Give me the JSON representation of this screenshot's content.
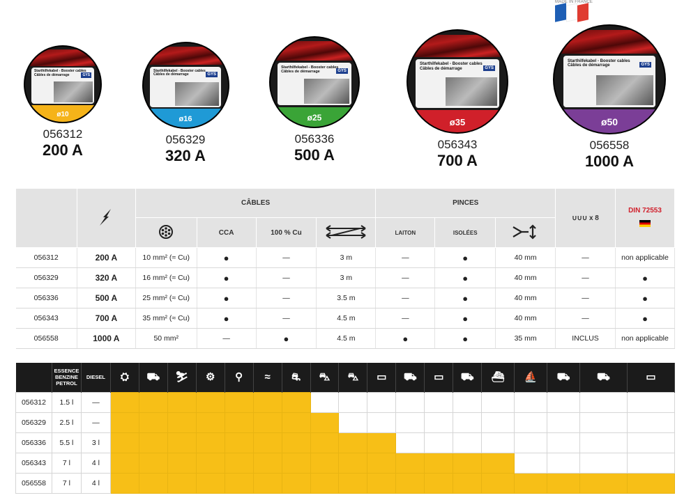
{
  "flag": {
    "label": "MADE IN FRANCE"
  },
  "bag": {
    "title_line1": "Starthilfekabel - Booster cables",
    "title_line2": "Câbles de démarrage",
    "brand": "GYS"
  },
  "products": [
    {
      "code": "056312",
      "amps": "200 A",
      "diameter": "ø10",
      "color": "#f5b319"
    },
    {
      "code": "056329",
      "amps": "320 A",
      "diameter": "ø16",
      "color": "#1f9ad6"
    },
    {
      "code": "056336",
      "amps": "500 A",
      "diameter": "ø25",
      "color": "#3aa437"
    },
    {
      "code": "056343",
      "amps": "700 A",
      "diameter": "ø35",
      "color": "#d0202a"
    },
    {
      "code": "056558",
      "amps": "1000 A",
      "diameter": "ø50",
      "color": "#7b3e97"
    }
  ],
  "spec_table": {
    "group_cables": "CÂBLES",
    "group_pinces": "PINCES",
    "col_cca": "CCA",
    "col_cu": "100 % Cu",
    "col_laiton": "LAITON",
    "col_isolees": "ISOLÉES",
    "col_hooks": "x 8",
    "col_din": "DIN 72553",
    "rows": [
      {
        "code": "056312",
        "amps": "200 A",
        "section": "10 mm² (≈ Cu)",
        "cca": "●",
        "cu": "—",
        "length": "3 m",
        "laiton": "—",
        "isolees": "●",
        "opening": "40 mm",
        "hooks": "—",
        "din": "non applicable"
      },
      {
        "code": "056329",
        "amps": "320 A",
        "section": "16 mm² (≈ Cu)",
        "cca": "●",
        "cu": "—",
        "length": "3 m",
        "laiton": "—",
        "isolees": "●",
        "opening": "40 mm",
        "hooks": "—",
        "din": "●"
      },
      {
        "code": "056336",
        "amps": "500 A",
        "section": "25 mm² (≈ Cu)",
        "cca": "●",
        "cu": "—",
        "length": "3.5 m",
        "laiton": "—",
        "isolees": "●",
        "opening": "40 mm",
        "hooks": "—",
        "din": "●"
      },
      {
        "code": "056343",
        "amps": "700 A",
        "section": "35 mm² (≈ Cu)",
        "cca": "●",
        "cu": "—",
        "length": "4.5 m",
        "laiton": "—",
        "isolees": "●",
        "opening": "40 mm",
        "hooks": "—",
        "din": "●"
      },
      {
        "code": "056558",
        "amps": "1000 A",
        "section": "50 mm²",
        "cca": "—",
        "cu": "●",
        "length": "4.5 m",
        "laiton": "●",
        "isolees": "●",
        "opening": "35 mm",
        "hooks": "INCLUS",
        "din": "non applicable"
      }
    ]
  },
  "vehicle_table": {
    "col_essence_1": "ESSENCE",
    "col_essence_2": "BENZINE",
    "col_essence_3": "PETROL",
    "col_diesel": "DIESEL",
    "vehicles": [
      "mower-icon",
      "golf-cart-icon",
      "snowmobile-icon",
      "quad-icon",
      "motorcycle-icon",
      "jetski-icon",
      "small-car-icon",
      "sedan-icon",
      "suv-icon",
      "van-icon",
      "tractor-icon",
      "camper-icon",
      "cement-truck-icon",
      "boat-icon",
      "sailboat-icon",
      "harvester-icon",
      "truck-icon",
      "bus-icon"
    ],
    "rows": [
      {
        "code": "056312",
        "essence": "1.5 l",
        "diesel": "—",
        "filled": 7
      },
      {
        "code": "056329",
        "essence": "2.5 l",
        "diesel": "—",
        "filled": 8
      },
      {
        "code": "056336",
        "essence": "5.5 l",
        "diesel": "3 l",
        "filled": 10
      },
      {
        "code": "056343",
        "essence": "7 l",
        "diesel": "4 l",
        "filled": 14
      },
      {
        "code": "056558",
        "essence": "7 l",
        "diesel": "4 l",
        "filled": 18
      }
    ]
  }
}
